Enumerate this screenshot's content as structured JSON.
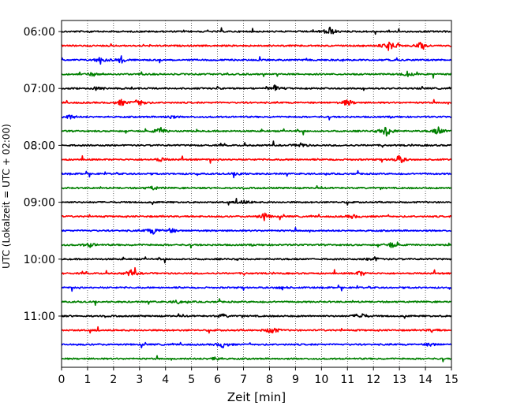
{
  "chart_data": {
    "type": "line",
    "title": "",
    "xlabel": "Zeit  [min]",
    "ylabel": "UTC (Lokalzeit = UTC + 02:00)",
    "xlim": [
      0,
      15
    ],
    "x_ticks": [
      0,
      1,
      2,
      3,
      4,
      5,
      6,
      7,
      8,
      9,
      10,
      11,
      12,
      13,
      14,
      15
    ],
    "y_tick_labels": [
      "06:00",
      "07:00",
      "08:00",
      "09:00",
      "10:00",
      "11:00"
    ],
    "grid": "vertical dotted lines at each minute",
    "legend": "none",
    "trace_interval_minutes": 15,
    "trace_color_cycle": [
      "#000000",
      "#ff0000",
      "#0000ff",
      "#008000"
    ],
    "series": [
      {
        "start": "06:00",
        "color": "#000000",
        "events": [
          {
            "x": 10.3,
            "amp": 0.8
          }
        ]
      },
      {
        "start": "06:15",
        "color": "#ff0000",
        "events": [
          {
            "x": 12.6,
            "amp": 1.0
          },
          {
            "x": 13.8,
            "amp": 0.5
          }
        ]
      },
      {
        "start": "06:30",
        "color": "#0000ff",
        "events": [
          {
            "x": 1.5,
            "amp": 0.6
          },
          {
            "x": 2.3,
            "amp": 0.6
          }
        ]
      },
      {
        "start": "06:45",
        "color": "#008000",
        "events": [
          {
            "x": 1.2,
            "amp": 0.3
          },
          {
            "x": 13.3,
            "amp": 0.4
          }
        ]
      },
      {
        "start": "07:00",
        "color": "#000000",
        "events": [
          {
            "x": 1.4,
            "amp": 0.4
          },
          {
            "x": 8.2,
            "amp": 0.5
          }
        ]
      },
      {
        "start": "07:15",
        "color": "#ff0000",
        "events": [
          {
            "x": 2.3,
            "amp": 0.5
          },
          {
            "x": 3.0,
            "amp": 0.7
          },
          {
            "x": 11.0,
            "amp": 0.6
          }
        ]
      },
      {
        "start": "07:30",
        "color": "#0000ff",
        "events": [
          {
            "x": 0.3,
            "amp": 0.4
          },
          {
            "x": 4.2,
            "amp": 0.3
          }
        ]
      },
      {
        "start": "07:45",
        "color": "#008000",
        "events": [
          {
            "x": 3.8,
            "amp": 0.6
          },
          {
            "x": 12.5,
            "amp": 1.0
          },
          {
            "x": 14.5,
            "amp": 0.7
          }
        ]
      },
      {
        "start": "08:00",
        "color": "#000000",
        "events": [
          {
            "x": 9.2,
            "amp": 0.4
          }
        ]
      },
      {
        "start": "08:15",
        "color": "#ff0000",
        "events": [
          {
            "x": 3.8,
            "amp": 0.3
          },
          {
            "x": 13.0,
            "amp": 0.7
          }
        ]
      },
      {
        "start": "08:30",
        "color": "#0000ff",
        "events": [
          {
            "x": 6.8,
            "amp": 0.3
          }
        ]
      },
      {
        "start": "08:45",
        "color": "#008000",
        "events": [
          {
            "x": 3.5,
            "amp": 0.3
          }
        ]
      },
      {
        "start": "09:00",
        "color": "#000000",
        "events": [
          {
            "x": 7.0,
            "amp": 0.4
          }
        ]
      },
      {
        "start": "09:15",
        "color": "#ff0000",
        "events": [
          {
            "x": 7.8,
            "amp": 0.6
          },
          {
            "x": 11.2,
            "amp": 0.3
          }
        ]
      },
      {
        "start": "09:30",
        "color": "#0000ff",
        "events": [
          {
            "x": 3.5,
            "amp": 0.6
          },
          {
            "x": 4.2,
            "amp": 0.4
          }
        ]
      },
      {
        "start": "09:45",
        "color": "#008000",
        "events": [
          {
            "x": 1.1,
            "amp": 0.4
          },
          {
            "x": 12.7,
            "amp": 0.5
          }
        ]
      },
      {
        "start": "10:00",
        "color": "#000000",
        "events": [
          {
            "x": 12.0,
            "amp": 0.4
          }
        ]
      },
      {
        "start": "10:15",
        "color": "#ff0000",
        "events": [
          {
            "x": 2.7,
            "amp": 0.6
          },
          {
            "x": 11.5,
            "amp": 0.4
          }
        ]
      },
      {
        "start": "10:30",
        "color": "#0000ff",
        "events": [
          {
            "x": 8.5,
            "amp": 0.3
          }
        ]
      },
      {
        "start": "10:45",
        "color": "#008000",
        "events": [
          {
            "x": 4.5,
            "amp": 0.3
          }
        ]
      },
      {
        "start": "11:00",
        "color": "#000000",
        "events": [
          {
            "x": 6.2,
            "amp": 0.3
          },
          {
            "x": 11.5,
            "amp": 0.6
          }
        ]
      },
      {
        "start": "11:15",
        "color": "#ff0000",
        "events": [
          {
            "x": 8.1,
            "amp": 0.7
          },
          {
            "x": 14.3,
            "amp": 0.3
          }
        ]
      },
      {
        "start": "11:30",
        "color": "#0000ff",
        "events": [
          {
            "x": 6.2,
            "amp": 0.5
          },
          {
            "x": 14.2,
            "amp": 0.3
          }
        ]
      },
      {
        "start": "11:45",
        "color": "#008000",
        "events": [
          {
            "x": 5.9,
            "amp": 0.4
          }
        ]
      }
    ]
  }
}
